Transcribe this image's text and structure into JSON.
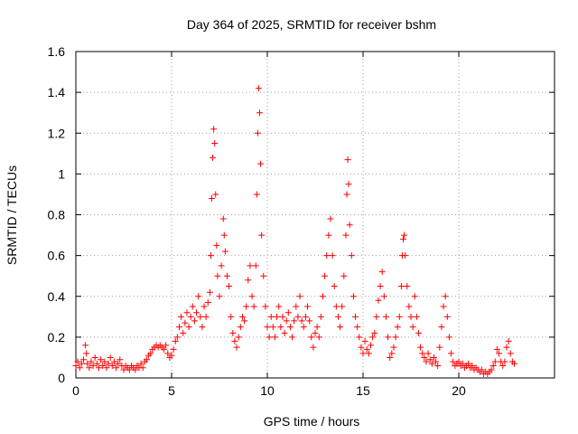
{
  "chart_data": {
    "type": "scatter",
    "title": "Day 364 of 2025, SRMTID for receiver bshm",
    "xlabel": "GPS time / hours",
    "ylabel": "SRMTID / TECUs",
    "xlim": [
      0,
      25
    ],
    "ylim": [
      0,
      1.6
    ],
    "x_ticks": [
      0,
      5,
      10,
      15,
      20
    ],
    "x_tick_labels": [
      "0",
      "5",
      "10",
      "15",
      "20"
    ],
    "y_ticks": [
      0,
      0.2,
      0.4,
      0.6,
      0.8,
      1.0,
      1.2,
      1.4,
      1.6
    ],
    "y_tick_labels": [
      "0",
      "0.2",
      "0.4",
      "0.6",
      "0.8",
      "1",
      "1.2",
      "1.4",
      "1.6"
    ],
    "grid": true,
    "marker": "+",
    "color": "#ff0000",
    "series": [
      {
        "name": "SRMTID",
        "points": [
          [
            0.0,
            0.06
          ],
          [
            0.1,
            0.08
          ],
          [
            0.2,
            0.05
          ],
          [
            0.3,
            0.07
          ],
          [
            0.4,
            0.09
          ],
          [
            0.5,
            0.16
          ],
          [
            0.55,
            0.12
          ],
          [
            0.6,
            0.07
          ],
          [
            0.7,
            0.05
          ],
          [
            0.8,
            0.08
          ],
          [
            0.9,
            0.06
          ],
          [
            1.0,
            0.1
          ],
          [
            1.1,
            0.07
          ],
          [
            1.2,
            0.05
          ],
          [
            1.3,
            0.09
          ],
          [
            1.4,
            0.06
          ],
          [
            1.5,
            0.08
          ],
          [
            1.6,
            0.05
          ],
          [
            1.7,
            0.07
          ],
          [
            1.8,
            0.1
          ],
          [
            1.9,
            0.06
          ],
          [
            2.0,
            0.08
          ],
          [
            2.1,
            0.05
          ],
          [
            2.2,
            0.07
          ],
          [
            2.3,
            0.09
          ],
          [
            2.4,
            0.06
          ],
          [
            2.5,
            0.04
          ],
          [
            2.6,
            0.06
          ],
          [
            2.7,
            0.05
          ],
          [
            2.8,
            0.04
          ],
          [
            2.9,
            0.06
          ],
          [
            3.0,
            0.05
          ],
          [
            3.1,
            0.04
          ],
          [
            3.2,
            0.06
          ],
          [
            3.3,
            0.05
          ],
          [
            3.4,
            0.07
          ],
          [
            3.5,
            0.05
          ],
          [
            3.6,
            0.08
          ],
          [
            3.7,
            0.09
          ],
          [
            3.8,
            0.11
          ],
          [
            3.9,
            0.12
          ],
          [
            4.0,
            0.14
          ],
          [
            4.1,
            0.15
          ],
          [
            4.2,
            0.16
          ],
          [
            4.3,
            0.15
          ],
          [
            4.4,
            0.16
          ],
          [
            4.5,
            0.15
          ],
          [
            4.6,
            0.14
          ],
          [
            4.7,
            0.16
          ],
          [
            4.8,
            0.12
          ],
          [
            4.9,
            0.1
          ],
          [
            5.0,
            0.11
          ],
          [
            5.1,
            0.14
          ],
          [
            5.2,
            0.18
          ],
          [
            5.3,
            0.2
          ],
          [
            5.4,
            0.25
          ],
          [
            5.5,
            0.3
          ],
          [
            5.6,
            0.22
          ],
          [
            5.7,
            0.27
          ],
          [
            5.8,
            0.32
          ],
          [
            5.9,
            0.25
          ],
          [
            6.0,
            0.3
          ],
          [
            6.1,
            0.35
          ],
          [
            6.2,
            0.28
          ],
          [
            6.3,
            0.32
          ],
          [
            6.4,
            0.4
          ],
          [
            6.5,
            0.3
          ],
          [
            6.6,
            0.25
          ],
          [
            6.7,
            0.35
          ],
          [
            6.8,
            0.3
          ],
          [
            6.9,
            0.37
          ],
          [
            7.0,
            0.42
          ],
          [
            7.05,
            0.6
          ],
          [
            7.1,
            0.88
          ],
          [
            7.15,
            1.08
          ],
          [
            7.2,
            1.22
          ],
          [
            7.25,
            1.15
          ],
          [
            7.3,
            0.9
          ],
          [
            7.35,
            0.65
          ],
          [
            7.4,
            0.5
          ],
          [
            7.5,
            0.4
          ],
          [
            7.6,
            0.55
          ],
          [
            7.7,
            0.78
          ],
          [
            7.75,
            0.7
          ],
          [
            7.8,
            0.62
          ],
          [
            7.9,
            0.5
          ],
          [
            8.0,
            0.45
          ],
          [
            8.1,
            0.3
          ],
          [
            8.2,
            0.22
          ],
          [
            8.3,
            0.18
          ],
          [
            8.4,
            0.15
          ],
          [
            8.5,
            0.2
          ],
          [
            8.6,
            0.25
          ],
          [
            8.7,
            0.3
          ],
          [
            8.8,
            0.28
          ],
          [
            8.9,
            0.35
          ],
          [
            9.0,
            0.48
          ],
          [
            9.1,
            0.55
          ],
          [
            9.2,
            0.4
          ],
          [
            9.3,
            0.35
          ],
          [
            9.4,
            0.55
          ],
          [
            9.45,
            0.9
          ],
          [
            9.5,
            1.2
          ],
          [
            9.55,
            1.42
          ],
          [
            9.6,
            1.3
          ],
          [
            9.65,
            1.05
          ],
          [
            9.7,
            0.7
          ],
          [
            9.8,
            0.5
          ],
          [
            9.9,
            0.35
          ],
          [
            10.0,
            0.25
          ],
          [
            10.1,
            0.2
          ],
          [
            10.2,
            0.3
          ],
          [
            10.3,
            0.25
          ],
          [
            10.4,
            0.2
          ],
          [
            10.5,
            0.3
          ],
          [
            10.6,
            0.35
          ],
          [
            10.7,
            0.25
          ],
          [
            10.8,
            0.3
          ],
          [
            10.9,
            0.22
          ],
          [
            11.0,
            0.28
          ],
          [
            11.1,
            0.32
          ],
          [
            11.2,
            0.25
          ],
          [
            11.3,
            0.2
          ],
          [
            11.4,
            0.28
          ],
          [
            11.5,
            0.35
          ],
          [
            11.6,
            0.3
          ],
          [
            11.7,
            0.4
          ],
          [
            11.8,
            0.28
          ],
          [
            11.9,
            0.25
          ],
          [
            12.0,
            0.3
          ],
          [
            12.1,
            0.35
          ],
          [
            12.2,
            0.28
          ],
          [
            12.3,
            0.2
          ],
          [
            12.4,
            0.15
          ],
          [
            12.5,
            0.22
          ],
          [
            12.6,
            0.25
          ],
          [
            12.7,
            0.2
          ],
          [
            12.8,
            0.3
          ],
          [
            12.9,
            0.4
          ],
          [
            13.0,
            0.5
          ],
          [
            13.1,
            0.6
          ],
          [
            13.2,
            0.7
          ],
          [
            13.3,
            0.78
          ],
          [
            13.4,
            0.6
          ],
          [
            13.5,
            0.45
          ],
          [
            13.6,
            0.35
          ],
          [
            13.7,
            0.3
          ],
          [
            13.8,
            0.25
          ],
          [
            13.9,
            0.35
          ],
          [
            14.0,
            0.5
          ],
          [
            14.1,
            0.7
          ],
          [
            14.15,
            0.9
          ],
          [
            14.2,
            1.07
          ],
          [
            14.25,
            0.95
          ],
          [
            14.3,
            0.75
          ],
          [
            14.4,
            0.6
          ],
          [
            14.5,
            0.4
          ],
          [
            14.6,
            0.3
          ],
          [
            14.7,
            0.25
          ],
          [
            14.8,
            0.2
          ],
          [
            14.9,
            0.15
          ],
          [
            15.0,
            0.12
          ],
          [
            15.1,
            0.18
          ],
          [
            15.2,
            0.14
          ],
          [
            15.3,
            0.12
          ],
          [
            15.4,
            0.16
          ],
          [
            15.5,
            0.2
          ],
          [
            15.6,
            0.22
          ],
          [
            15.7,
            0.3
          ],
          [
            15.8,
            0.38
          ],
          [
            15.9,
            0.45
          ],
          [
            16.0,
            0.52
          ],
          [
            16.1,
            0.4
          ],
          [
            16.2,
            0.3
          ],
          [
            16.3,
            0.2
          ],
          [
            16.4,
            0.1
          ],
          [
            16.5,
            0.12
          ],
          [
            16.6,
            0.15
          ],
          [
            16.7,
            0.2
          ],
          [
            16.8,
            0.25
          ],
          [
            16.9,
            0.3
          ],
          [
            17.0,
            0.45
          ],
          [
            17.05,
            0.6
          ],
          [
            17.1,
            0.68
          ],
          [
            17.15,
            0.7
          ],
          [
            17.2,
            0.6
          ],
          [
            17.3,
            0.45
          ],
          [
            17.4,
            0.35
          ],
          [
            17.5,
            0.3
          ],
          [
            17.6,
            0.25
          ],
          [
            17.7,
            0.4
          ],
          [
            17.8,
            0.3
          ],
          [
            17.9,
            0.22
          ],
          [
            18.0,
            0.15
          ],
          [
            18.1,
            0.12
          ],
          [
            18.2,
            0.1
          ],
          [
            18.3,
            0.08
          ],
          [
            18.4,
            0.12
          ],
          [
            18.5,
            0.09
          ],
          [
            18.6,
            0.07
          ],
          [
            18.7,
            0.1
          ],
          [
            18.8,
            0.08
          ],
          [
            18.9,
            0.06
          ],
          [
            19.0,
            0.15
          ],
          [
            19.1,
            0.25
          ],
          [
            19.2,
            0.35
          ],
          [
            19.3,
            0.4
          ],
          [
            19.4,
            0.3
          ],
          [
            19.5,
            0.2
          ],
          [
            19.6,
            0.12
          ],
          [
            19.7,
            0.08
          ],
          [
            19.8,
            0.06
          ],
          [
            19.9,
            0.07
          ],
          [
            20.0,
            0.08
          ],
          [
            20.1,
            0.06
          ],
          [
            20.2,
            0.07
          ],
          [
            20.3,
            0.05
          ],
          [
            20.4,
            0.06
          ],
          [
            20.5,
            0.07
          ],
          [
            20.6,
            0.05
          ],
          [
            20.7,
            0.06
          ],
          [
            20.8,
            0.04
          ],
          [
            20.9,
            0.05
          ],
          [
            21.0,
            0.04
          ],
          [
            21.1,
            0.03
          ],
          [
            21.2,
            0.04
          ],
          [
            21.3,
            0.02
          ],
          [
            21.4,
            0.03
          ],
          [
            21.5,
            0.02
          ],
          [
            21.6,
            0.03
          ],
          [
            21.7,
            0.04
          ],
          [
            21.8,
            0.06
          ],
          [
            21.9,
            0.08
          ],
          [
            22.0,
            0.14
          ],
          [
            22.1,
            0.12
          ],
          [
            22.2,
            0.08
          ],
          [
            22.3,
            0.06
          ],
          [
            22.4,
            0.08
          ],
          [
            22.5,
            0.15
          ],
          [
            22.6,
            0.18
          ],
          [
            22.7,
            0.12
          ],
          [
            22.8,
            0.08
          ],
          [
            22.9,
            0.07
          ]
        ]
      }
    ]
  }
}
